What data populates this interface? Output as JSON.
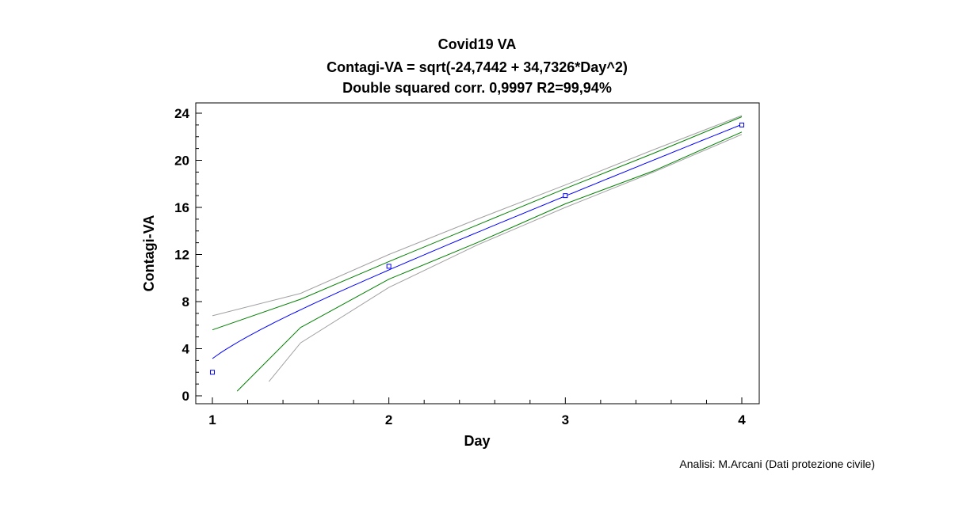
{
  "chart_data": {
    "type": "scatter",
    "title": "Covid19 VA",
    "subtitle": "Contagi-VA = sqrt(-24,7442 + 34,7326*Day^2)",
    "subtitle2": "Double squared corr. 0,9997 R2=99,94%",
    "xlabel": "Day",
    "ylabel": "Contagi-VA",
    "xlim": [
      1,
      4
    ],
    "ylim": [
      0,
      24
    ],
    "x_ticks": [
      "1",
      "2",
      "3",
      "4"
    ],
    "y_ticks": [
      "0",
      "4",
      "8",
      "12",
      "16",
      "20",
      "24"
    ],
    "model": {
      "intercept": -24.7442,
      "slope": 34.7326
    },
    "series": [
      {
        "kind": "points",
        "x": [
          1,
          2,
          3,
          4
        ],
        "y": [
          2,
          11,
          17,
          23
        ],
        "color": "#0000ff"
      },
      {
        "kind": "fit",
        "color": "#0000ff"
      },
      {
        "kind": "confidence-band",
        "color": "#008000",
        "x": [
          1.14,
          1.5,
          2,
          2.5,
          3,
          3.5,
          4
        ],
        "lower": [
          0.4,
          5.8,
          9.9,
          13.0,
          16.3,
          19.1,
          22.4
        ],
        "upper": [
          5.6,
          8.2,
          11.4,
          14.5,
          17.6,
          20.6,
          23.7
        ],
        "upper_at_1": 5.6
      },
      {
        "kind": "prediction-band",
        "color": "#a0a0a0",
        "x": [
          1.32,
          1.5,
          2,
          2.5,
          3,
          3.5,
          4
        ],
        "lower": [
          1.2,
          4.5,
          9.2,
          12.8,
          16.0,
          19.0,
          22.2
        ],
        "upper": [
          6.8,
          8.7,
          12.0,
          15.0,
          17.9,
          20.9,
          23.8
        ],
        "upper_at_1": 6.8
      }
    ],
    "grid": false,
    "legend": "none"
  },
  "credit": "Analisi: M.Arcani (Dati protezione civile)"
}
